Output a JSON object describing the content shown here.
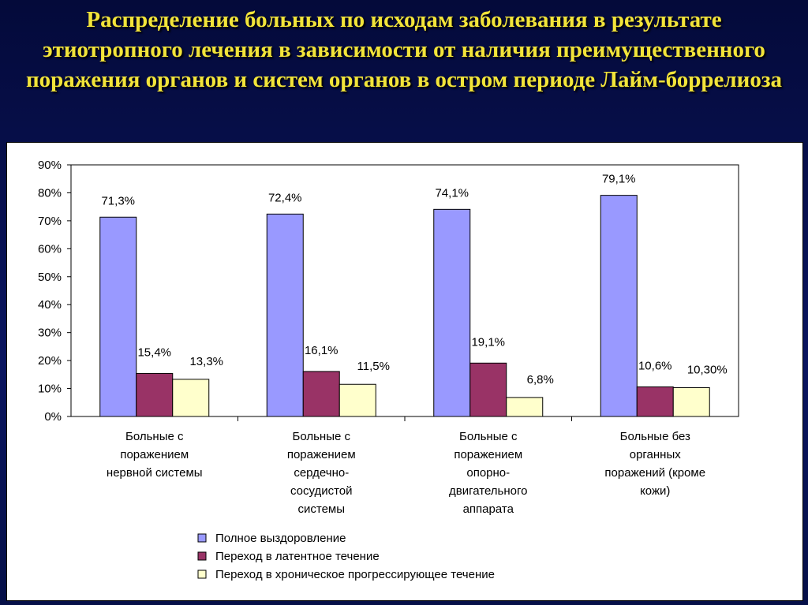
{
  "slide": {
    "title": "Распределение больных по исходам заболевания в результате этиотропного лечения в зависимости от наличия преимущественного поражения органов и систем органов в остром периоде Лайм-боррелиоза",
    "title_color": "#f2e43a"
  },
  "chart_data": {
    "type": "bar",
    "categories": [
      "Больные с поражением нервной системы",
      "Больные с поражением сердечно-сосудистой системы",
      "Больные с поражением опорно-двигательного аппарата",
      "Больные без органных поражений (кроме кожи)"
    ],
    "category_lines": [
      [
        "Больные с",
        "поражением",
        "нервной системы"
      ],
      [
        "Больные с",
        "поражением",
        "сердечно-",
        "сосудистой",
        "системы"
      ],
      [
        "Больные с",
        "поражением",
        "опорно-",
        "двигательного",
        "аппарата"
      ],
      [
        "Больные без",
        "органных",
        "поражений (кроме",
        "кожи)"
      ]
    ],
    "series": [
      {
        "name": "Полное выздоровление",
        "color": "#9999ff",
        "values": [
          71.3,
          72.4,
          74.1,
          79.1
        ],
        "labels": [
          "71,3%",
          "72,4%",
          "74,1%",
          "79,1%"
        ]
      },
      {
        "name": "Переход в латентное течение",
        "color": "#993366",
        "values": [
          15.4,
          16.1,
          19.1,
          10.6
        ],
        "labels": [
          "15,4%",
          "16,1%",
          "19,1%",
          "10,6%"
        ]
      },
      {
        "name": "Переход в хроническое прогрессирующее течение",
        "color": "#ffffcc",
        "values": [
          13.3,
          11.5,
          6.8,
          10.3
        ],
        "labels": [
          "13,3%",
          "11,5%",
          "6,8%",
          "10,30%"
        ]
      }
    ],
    "ylim": [
      0,
      90
    ],
    "yticks": [
      "0%",
      "10%",
      "20%",
      "30%",
      "40%",
      "50%",
      "60%",
      "70%",
      "80%",
      "90%"
    ],
    "grid": false,
    "legend_position": "bottom"
  }
}
